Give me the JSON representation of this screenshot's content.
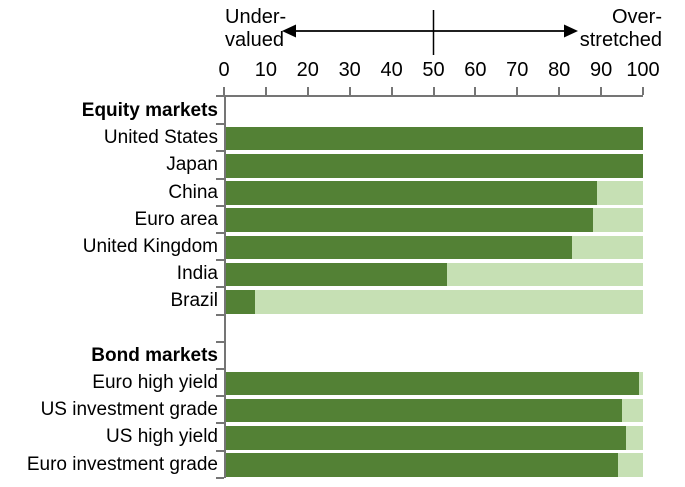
{
  "chart_data": {
    "type": "bar",
    "orientation": "horizontal",
    "axis_top": {
      "min": 0,
      "max": 100,
      "tick_step": 10,
      "tick_labels": [
        "0",
        "10",
        "20",
        "30",
        "40",
        "50",
        "60",
        "70",
        "80",
        "90",
        "100"
      ],
      "left_label_line1": "Under-",
      "left_label_line2": "valued",
      "right_label_line1": "Over-",
      "right_label_line2": "stretched",
      "midline_value": 50,
      "grid": "off"
    },
    "sections": [
      {
        "title": "Equity markets",
        "rows": [
          {
            "label": "United States",
            "value": 100
          },
          {
            "label": "Japan",
            "value": 100
          },
          {
            "label": "China",
            "value": 89
          },
          {
            "label": "Euro area",
            "value": 88
          },
          {
            "label": "United Kingdom",
            "value": 83
          },
          {
            "label": "India",
            "value": 53
          },
          {
            "label": "Brazil",
            "value": 7
          }
        ]
      },
      {
        "title": "Bond markets",
        "rows": [
          {
            "label": "Euro high yield",
            "value": 99
          },
          {
            "label": "US investment grade",
            "value": 95
          },
          {
            "label": "US high yield",
            "value": 96
          },
          {
            "label": "Euro investment grade",
            "value": 94
          }
        ]
      }
    ],
    "track_range": [
      0,
      100
    ],
    "colors": {
      "bar_fill": "#538135",
      "bar_track": "#c6e0b4",
      "axis_line": "#757575",
      "text": "#000000"
    }
  }
}
